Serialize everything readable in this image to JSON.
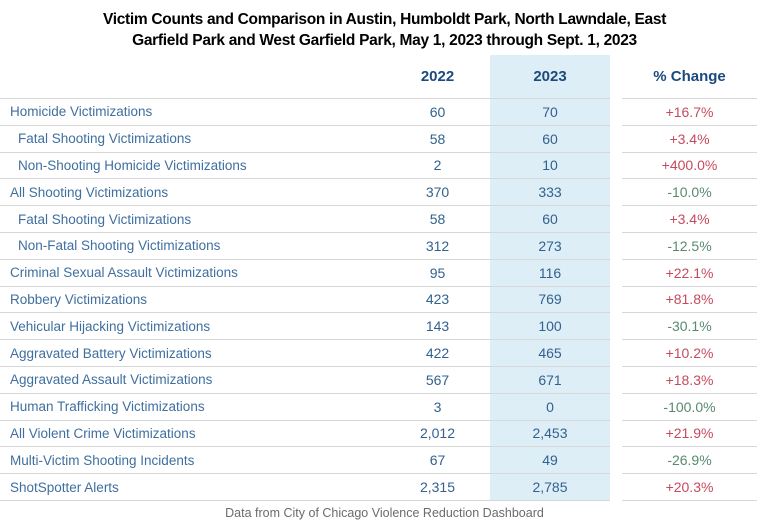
{
  "title": {
    "line1": "Victim Counts and Comparison in Austin, Humboldt Park, North Lawndale, East",
    "line2": "Garfield Park and West Garfield Park, May 1, 2023 through Sept. 1, 2023"
  },
  "table": {
    "columns": {
      "y2022": "2022",
      "y2023": "2023",
      "pct": "% Change"
    },
    "rows": [
      {
        "label": "Homicide Victimizations",
        "indent": false,
        "y2022": "60",
        "y2023": "70",
        "change": "+16.7%",
        "direction": "up"
      },
      {
        "label": "Fatal Shooting Victimizations",
        "indent": true,
        "y2022": "58",
        "y2023": "60",
        "change": "+3.4%",
        "direction": "up"
      },
      {
        "label": "Non-Shooting Homicide Victimizations",
        "indent": true,
        "y2022": "2",
        "y2023": "10",
        "change": "+400.0%",
        "direction": "up"
      },
      {
        "label": "All Shooting Victimizations",
        "indent": false,
        "y2022": "370",
        "y2023": "333",
        "change": "-10.0%",
        "direction": "down"
      },
      {
        "label": "Fatal Shooting Victimizations",
        "indent": true,
        "y2022": "58",
        "y2023": "60",
        "change": "+3.4%",
        "direction": "up"
      },
      {
        "label": "Non-Fatal Shooting Victimizations",
        "indent": true,
        "y2022": "312",
        "y2023": "273",
        "change": "-12.5%",
        "direction": "down"
      },
      {
        "label": "Criminal Sexual Assault Victimizations",
        "indent": false,
        "y2022": "95",
        "y2023": "116",
        "change": "+22.1%",
        "direction": "up"
      },
      {
        "label": "Robbery Victimizations",
        "indent": false,
        "y2022": "423",
        "y2023": "769",
        "change": "+81.8%",
        "direction": "up"
      },
      {
        "label": "Vehicular Hijacking Victimizations",
        "indent": false,
        "y2022": "143",
        "y2023": "100",
        "change": "-30.1%",
        "direction": "down"
      },
      {
        "label": "Aggravated Battery Victimizations",
        "indent": false,
        "y2022": "422",
        "y2023": "465",
        "change": "+10.2%",
        "direction": "up"
      },
      {
        "label": "Aggravated Assault Victimizations",
        "indent": false,
        "y2022": "567",
        "y2023": "671",
        "change": "+18.3%",
        "direction": "up"
      },
      {
        "label": "Human Trafficking Victimizations",
        "indent": false,
        "y2022": "3",
        "y2023": "0",
        "change": "-100.0%",
        "direction": "down"
      },
      {
        "label": "All Violent Crime Victimizations",
        "indent": false,
        "y2022": "2,012",
        "y2023": "2,453",
        "change": "+21.9%",
        "direction": "up"
      },
      {
        "label": "Multi-Victim Shooting Incidents",
        "indent": false,
        "y2022": "67",
        "y2023": "49",
        "change": "-26.9%",
        "direction": "down"
      },
      {
        "label": "ShotSpotter Alerts",
        "indent": false,
        "y2022": "2,315",
        "y2023": "2,785",
        "change": "+20.3%",
        "direction": "up"
      }
    ]
  },
  "footer": {
    "source": "Data from City of Chicago Violence Reduction Dashboard"
  },
  "colors": {
    "highlight_2023_column": "#ddeef7",
    "header_text": "#1b4a7d",
    "row_label_text": "#3f6f9f",
    "value_text": "#33618f",
    "increase_red": "#c64a5d",
    "decrease_green": "#578a6e",
    "divider": "#d7d7d7",
    "footer_text": "#6b6b6b"
  },
  "chart_data": {
    "type": "table",
    "title": "Victim Counts and Comparison in Austin, Humboldt Park, North Lawndale, East Garfield Park and West Garfield Park, May 1, 2023 through Sept. 1, 2023",
    "columns": [
      "2022",
      "2023",
      "% Change"
    ],
    "categories": [
      "Homicide Victimizations",
      "Fatal Shooting Victimizations",
      "Non-Shooting Homicide Victimizations",
      "All Shooting Victimizations",
      "Fatal Shooting Victimizations",
      "Non-Fatal Shooting Victimizations",
      "Criminal Sexual Assault Victimizations",
      "Robbery Victimizations",
      "Vehicular Hijacking Victimizations",
      "Aggravated Battery Victimizations",
      "Aggravated Assault Victimizations",
      "Human Trafficking Victimizations",
      "All Violent Crime Victimizations",
      "Multi-Victim Shooting Incidents",
      "ShotSpotter Alerts"
    ],
    "series": [
      {
        "name": "2022",
        "values": [
          60,
          58,
          2,
          370,
          58,
          312,
          95,
          423,
          143,
          422,
          567,
          3,
          2012,
          67,
          2315
        ]
      },
      {
        "name": "2023",
        "values": [
          70,
          60,
          10,
          333,
          60,
          273,
          116,
          769,
          100,
          465,
          671,
          0,
          2453,
          49,
          2785
        ]
      },
      {
        "name": "% Change",
        "values": [
          "+16.7%",
          "+3.4%",
          "+400.0%",
          "-10.0%",
          "+3.4%",
          "-12.5%",
          "+22.1%",
          "+81.8%",
          "-30.1%",
          "+10.2%",
          "+18.3%",
          "-100.0%",
          "+21.9%",
          "-26.9%",
          "+20.3%"
        ]
      }
    ],
    "source": "Data from City of Chicago Violence Reduction Dashboard"
  }
}
